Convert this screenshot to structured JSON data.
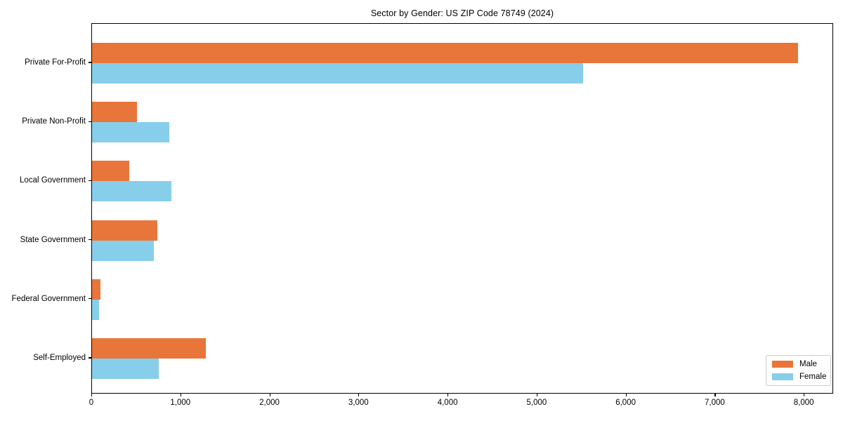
{
  "title": "Sector by Gender: US ZIP Code 78749 (2024)",
  "chart_data": {
    "type": "bar",
    "orientation": "horizontal",
    "title": "Sector by Gender: US ZIP Code 78749 (2024)",
    "categories": [
      "Private For-Profit",
      "Private Non-Profit",
      "Local Government",
      "State Government",
      "Federal Government",
      "Self-Employed"
    ],
    "series": [
      {
        "name": "Male",
        "color": "#E8763B",
        "values": [
          7930,
          505,
          415,
          735,
          95,
          1275
        ]
      },
      {
        "name": "Female",
        "color": "#87CEEB",
        "values": [
          5510,
          865,
          890,
          690,
          75,
          750
        ]
      }
    ],
    "xlabel": "",
    "ylabel": "",
    "xlim": [
      0,
      8330
    ],
    "xticks": [
      0,
      1000,
      2000,
      3000,
      4000,
      5000,
      6000,
      7000,
      8000
    ],
    "xtick_labels": [
      "0",
      "1,000",
      "2,000",
      "3,000",
      "4,000",
      "5,000",
      "6,000",
      "7,000",
      "8,000"
    ],
    "grid": false,
    "legend_position": "lower right",
    "background_color": "#FFFFFF",
    "axis_color": "#000000",
    "legend_border_color": "#CCCCCC"
  }
}
